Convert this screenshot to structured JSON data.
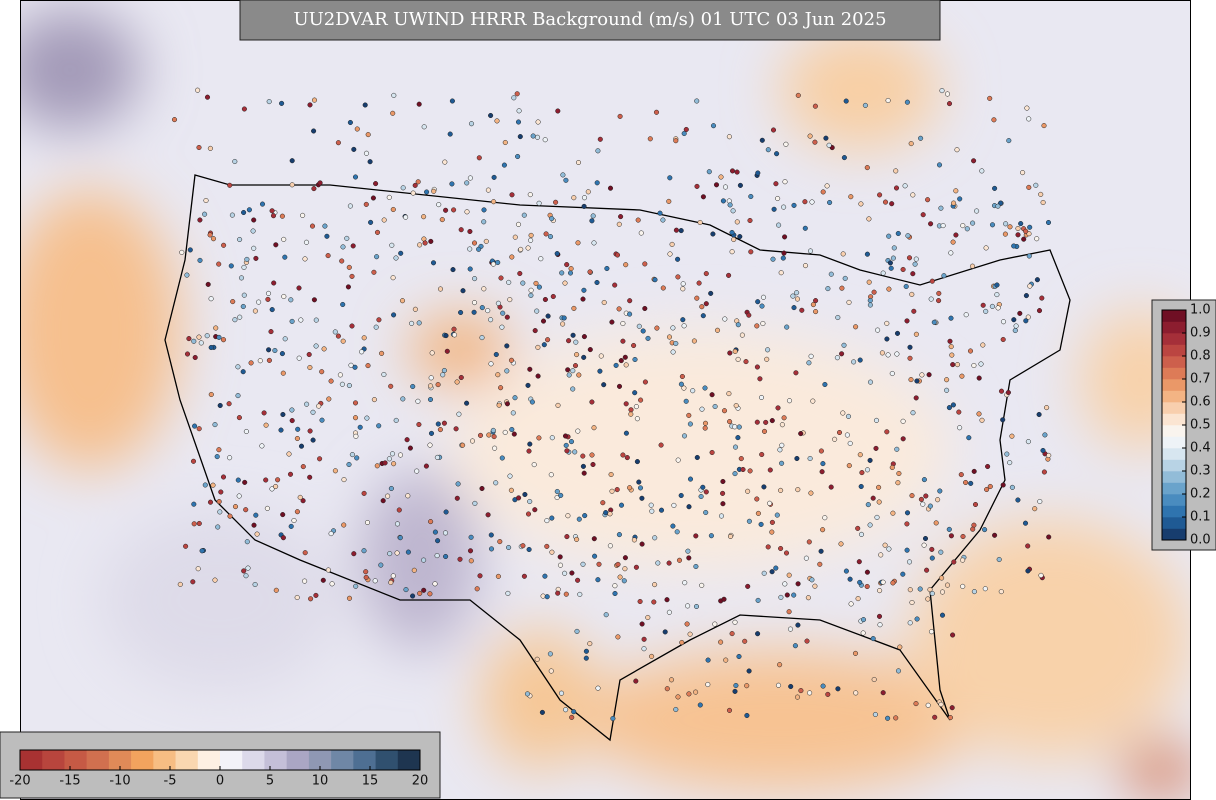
{
  "title": "UU2DVAR UWIND HRRR Background (m/s) 01 UTC 03 Jun 2025",
  "colorbar_bottom": {
    "ticks": [
      -20,
      -15,
      -10,
      -5,
      0,
      5,
      10,
      15,
      20
    ],
    "lim": [
      -20,
      20
    ],
    "colors": [
      "#a83232",
      "#b8453d",
      "#c65a45",
      "#d1704f",
      "#e08a58",
      "#f2a35e",
      "#f7bd83",
      "#fad7b0",
      "#fdf0e3",
      "#f3f2f8",
      "#dcd9ea",
      "#c4bfd8",
      "#aaa6c4",
      "#8f98b4",
      "#6f87a6",
      "#4e6f93",
      "#30506f",
      "#1e3550"
    ]
  },
  "colorbar_right": {
    "ticks": [
      {
        "value": 0,
        "label": "0.0"
      },
      {
        "value": 0.1,
        "label": "0.1"
      },
      {
        "value": 0.2,
        "label": "0.2"
      },
      {
        "value": 0.3,
        "label": "0.3"
      },
      {
        "value": 0.4,
        "label": "0.4"
      },
      {
        "value": 0.5,
        "label": "0.5"
      },
      {
        "value": 0.6,
        "label": "0.6"
      },
      {
        "value": 0.7,
        "label": "0.7"
      },
      {
        "value": 0.8,
        "label": "0.8"
      },
      {
        "value": 0.9,
        "label": "0.9"
      },
      {
        "value": 1,
        "label": "1.0"
      }
    ],
    "lim": [
      0,
      1
    ],
    "colors": [
      "#173d6e",
      "#1f5a94",
      "#2f74af",
      "#4a8cbf",
      "#6aa3cb",
      "#92bcd8",
      "#b8d3e5",
      "#d7e6f0",
      "#eef3f7",
      "#f9f4ee",
      "#fbe5d2",
      "#f8cfae",
      "#f3b484",
      "#ea9868",
      "#dd7b57",
      "#cd5f4c",
      "#bb4541",
      "#a52f39",
      "#8c1d2f",
      "#6f0f24"
    ]
  }
}
